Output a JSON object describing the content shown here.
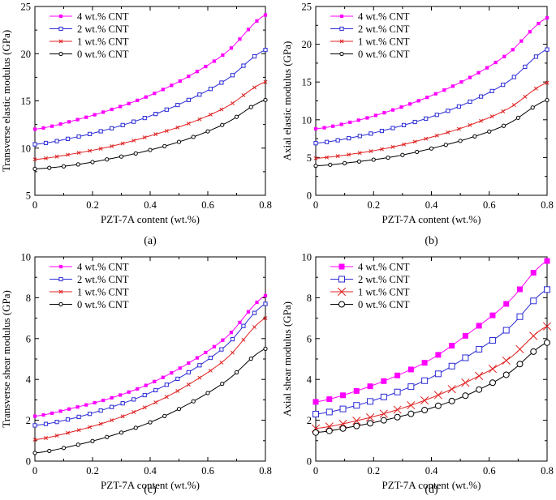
{
  "figure": {
    "legend_entries": [
      "4 wt.% CNT",
      "2 wt.% CNT",
      "1 wt.% CNT",
      "0 wt.% CNT"
    ],
    "series_colors": [
      "#ff00ff",
      "#2b2bd6",
      "#e02020",
      "#000000"
    ],
    "marker_names": [
      "filled-square",
      "open-square",
      "cross",
      "open-circle"
    ]
  },
  "chart_data": [
    {
      "type": "line",
      "panel": "(a)",
      "title": "",
      "xlabel": "PZT-7A content (wt.%)",
      "ylabel": "Transverse elastic modulus (GPa)",
      "xlim": [
        0,
        0.8
      ],
      "ylim": [
        5,
        25
      ],
      "xticks": [
        0,
        0.2,
        0.4,
        0.6,
        0.8
      ],
      "xtick_labels": [
        "0",
        "0.2",
        "0.4",
        "0.6",
        "0.8"
      ],
      "yticks": [
        5,
        10,
        15,
        20,
        25
      ],
      "ytick_labels": [
        "5",
        "10",
        "15",
        "20",
        "25"
      ],
      "legend_position": "top-left",
      "series": [
        {
          "name": "4 wt.% CNT",
          "curve": [
            12,
            12.9,
            14.1,
            15.6,
            17.6,
            20.2,
            24.1
          ]
        },
        {
          "name": "2 wt.% CNT",
          "curve": [
            10.4,
            11.1,
            12.1,
            13.4,
            15.1,
            17.3,
            20.4
          ]
        },
        {
          "name": "1 wt.% CNT",
          "curve": [
            8.8,
            9.4,
            10.2,
            11.3,
            12.6,
            14.4,
            17
          ]
        },
        {
          "name": "0 wt.% CNT",
          "curve": [
            7.8,
            8.2,
            8.9,
            9.8,
            11,
            12.7,
            15.1
          ]
        }
      ]
    },
    {
      "type": "line",
      "panel": "(b)",
      "title": "",
      "xlabel": "PZT-7A content (wt.%)",
      "ylabel": "Axial elastic modulus (GPa)",
      "xlim": [
        0,
        0.8
      ],
      "ylim": [
        0,
        25
      ],
      "xticks": [
        0,
        0.2,
        0.4,
        0.6,
        0.8
      ],
      "xtick_labels": [
        "0",
        "0.2",
        "0.4",
        "0.6",
        "0.8"
      ],
      "yticks": [
        0,
        5,
        10,
        15,
        20,
        25
      ],
      "ytick_labels": [
        "0",
        "5",
        "10",
        "15",
        "20",
        "25"
      ],
      "legend_position": "top-left",
      "series": [
        {
          "name": "4 wt.% CNT",
          "curve": [
            8.8,
            9.8,
            11.3,
            13.2,
            15.6,
            18.8,
            23.5
          ]
        },
        {
          "name": "2 wt.% CNT",
          "curve": [
            6.9,
            7.7,
            8.9,
            10.4,
            12.4,
            15.1,
            19.3
          ]
        },
        {
          "name": "1 wt.% CNT",
          "curve": [
            4.9,
            5.5,
            6.4,
            7.7,
            9.3,
            11.5,
            14.9
          ]
        },
        {
          "name": "0 wt.% CNT",
          "curve": [
            3.9,
            4.4,
            5.1,
            6.2,
            7.6,
            9.5,
            12.6
          ]
        }
      ]
    },
    {
      "type": "line",
      "panel": "(c)",
      "title": "",
      "xlabel": "PZT-7A content (wt.%)",
      "ylabel": "Transverse shear modulus (GPa)",
      "xlim": [
        0,
        0.8
      ],
      "ylim": [
        0,
        10
      ],
      "xticks": [
        0,
        0.2,
        0.4,
        0.6,
        0.8
      ],
      "xtick_labels": [
        "0",
        "0.2",
        "0.4",
        "0.6",
        "0.8"
      ],
      "yticks": [
        0,
        2,
        4,
        6,
        8,
        10
      ],
      "ytick_labels": [
        "0",
        "2",
        "4",
        "6",
        "8",
        "10"
      ],
      "legend_position": "top-left",
      "series": [
        {
          "name": "4 wt.% CNT",
          "curve": [
            2.2,
            2.6,
            3.1,
            3.8,
            4.8,
            6.1,
            8.1
          ]
        },
        {
          "name": "2 wt.% CNT",
          "curve": [
            1.75,
            2.1,
            2.65,
            3.35,
            4.35,
            5.7,
            7.7
          ]
        },
        {
          "name": "1 wt.% CNT",
          "curve": [
            1.05,
            1.45,
            2,
            2.75,
            3.75,
            5.05,
            7
          ]
        },
        {
          "name": "0 wt.% CNT",
          "curve": [
            0.4,
            0.75,
            1.25,
            1.9,
            2.8,
            3.95,
            5.5
          ]
        }
      ]
    },
    {
      "type": "line",
      "panel": "(d)",
      "title": "",
      "xlabel": "PZT-7A content (wt.%)",
      "ylabel": "Axial shear modulus (GPa)",
      "xlim": [
        0,
        0.8
      ],
      "ylim": [
        0,
        10
      ],
      "xticks": [
        0,
        0.2,
        0.4,
        0.6,
        0.8
      ],
      "xtick_labels": [
        "0",
        "0.2",
        "0.4",
        "0.6",
        "0.8"
      ],
      "yticks": [
        0,
        2,
        4,
        6,
        8,
        10
      ],
      "ytick_labels": [
        "0",
        "2",
        "4",
        "6",
        "8",
        "10"
      ],
      "legend_position": "top-left",
      "series": [
        {
          "name": "4 wt.% CNT",
          "curve": [
            2.9,
            3.4,
            4.1,
            5,
            6.3,
            7.8,
            9.8
          ]
        },
        {
          "name": "2 wt.% CNT",
          "curve": [
            2.3,
            2.7,
            3.3,
            4.1,
            5.2,
            6.5,
            8.4
          ]
        },
        {
          "name": "1 wt.% CNT",
          "curve": [
            1.6,
            1.95,
            2.45,
            3.1,
            3.95,
            5,
            6.6
          ]
        },
        {
          "name": "0 wt.% CNT",
          "curve": [
            1.4,
            1.7,
            2.1,
            2.6,
            3.3,
            4.3,
            5.8
          ]
        }
      ]
    }
  ]
}
